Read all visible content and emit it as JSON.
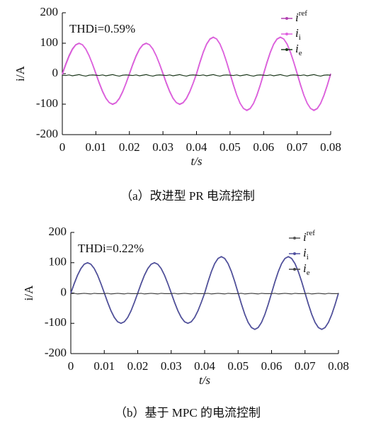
{
  "chart_data": [
    {
      "type": "line",
      "annotation": "THDi=0.59%",
      "x_label": "t/s",
      "y_label": "i/A",
      "caption": "（a）改进型 PR 电流控制",
      "xlim": [
        0,
        0.08
      ],
      "xticks": [
        0,
        0.01,
        0.02,
        0.03,
        0.04,
        0.05,
        0.06,
        0.07,
        0.08
      ],
      "ylim": [
        -200,
        200
      ],
      "yticks": [
        -200,
        -100,
        0,
        100,
        200
      ],
      "legend": "upper right",
      "x": [
        0,
        0.001,
        0.002,
        0.003,
        0.004,
        0.005,
        0.006,
        0.007,
        0.008,
        0.009,
        0.01,
        0.011,
        0.012,
        0.013,
        0.014,
        0.015,
        0.016,
        0.017,
        0.018,
        0.019,
        0.02,
        0.021,
        0.022,
        0.023,
        0.024,
        0.025,
        0.026,
        0.027,
        0.028,
        0.029,
        0.03,
        0.031,
        0.032,
        0.033,
        0.034,
        0.035,
        0.036,
        0.037,
        0.038,
        0.039,
        0.04,
        0.041,
        0.042,
        0.043,
        0.044,
        0.045,
        0.046,
        0.047,
        0.048,
        0.049,
        0.05,
        0.051,
        0.052,
        0.053,
        0.054,
        0.055,
        0.056,
        0.057,
        0.058,
        0.059,
        0.06,
        0.061,
        0.062,
        0.063,
        0.064,
        0.065,
        0.066,
        0.067,
        0.068,
        0.069,
        0.07,
        0.071,
        0.072,
        0.073,
        0.074,
        0.075,
        0.076,
        0.077,
        0.078,
        0.079,
        0.08
      ],
      "series": [
        {
          "name": "iref",
          "color": "#b040b0",
          "values": [
            0,
            30.9,
            58.8,
            80.9,
            95.1,
            100,
            95.1,
            80.9,
            58.8,
            30.9,
            0,
            -30.9,
            -58.8,
            -80.9,
            -95.1,
            -100,
            -95.1,
            -80.9,
            -58.8,
            -30.9,
            0,
            30.9,
            58.8,
            80.9,
            95.1,
            100,
            95.1,
            80.9,
            58.8,
            30.9,
            0,
            -30.9,
            -58.8,
            -80.9,
            -95.1,
            -100,
            -95.1,
            -80.9,
            -58.8,
            -30.9,
            0,
            37.1,
            70.5,
            97.1,
            114.1,
            120,
            114.1,
            97.1,
            70.5,
            37.1,
            0,
            -37.1,
            -70.5,
            -97.1,
            -114.1,
            -120,
            -114.1,
            -97.1,
            -70.5,
            -37.1,
            0,
            37.1,
            70.5,
            97.1,
            114.1,
            120,
            114.1,
            97.1,
            70.5,
            37.1,
            0,
            -37.1,
            -70.5,
            -97.1,
            -114.1,
            -120,
            -114.1,
            -97.1,
            -70.5,
            -37.1,
            0
          ]
        },
        {
          "name": "ii",
          "color": "#e060e0",
          "values": [
            -3,
            28,
            56,
            79,
            94,
            99,
            95,
            81,
            59,
            32,
            2,
            -29,
            -57,
            -80,
            -95,
            -101,
            -96,
            -82,
            -60,
            -32,
            -2,
            29,
            57,
            80,
            94,
            99,
            95,
            81,
            59,
            32,
            2,
            -29,
            -57,
            -80,
            -95,
            -101,
            -96,
            -82,
            -60,
            -32,
            -2,
            35,
            69,
            96,
            113,
            119,
            114,
            98,
            71,
            38,
            2,
            -35,
            -70,
            -97,
            -114,
            -121,
            -115,
            -98,
            -72,
            -39,
            -2,
            35,
            69,
            96,
            113,
            119,
            114,
            98,
            71,
            38,
            2,
            -35,
            -70,
            -97,
            -114,
            -121,
            -115,
            -98,
            -72,
            -39,
            -2
          ]
        },
        {
          "name": "ie",
          "color": "#1e3a1e",
          "values": [
            -5,
            -6,
            -4,
            -7,
            -5,
            -3,
            -6,
            -8,
            -5,
            -4,
            -5,
            -6,
            -4,
            -7,
            -5,
            -3,
            -6,
            -8,
            -5,
            -4,
            -5,
            -6,
            -4,
            -7,
            -5,
            -3,
            -6,
            -8,
            -5,
            -4,
            -5,
            -6,
            -4,
            -7,
            -5,
            -3,
            -6,
            -8,
            -5,
            -4,
            -5,
            -6,
            -4,
            -7,
            -5,
            -3,
            -6,
            -8,
            -5,
            -4,
            -5,
            -6,
            -4,
            -7,
            -5,
            -3,
            -6,
            -8,
            -5,
            -4,
            -5,
            -6,
            -4,
            -7,
            -5,
            -3,
            -6,
            -8,
            -5,
            -4,
            -5,
            -6,
            -4,
            -7,
            -5,
            -3,
            -6,
            -8,
            -5,
            -4,
            -5
          ]
        }
      ]
    },
    {
      "type": "line",
      "annotation": "THDi=0.22%",
      "x_label": "t/s",
      "y_label": "i/A",
      "caption": "（b）基于 MPC 的电流控制",
      "xlim": [
        0,
        0.08
      ],
      "xticks": [
        0,
        0.01,
        0.02,
        0.03,
        0.04,
        0.05,
        0.06,
        0.07,
        0.08
      ],
      "ylim": [
        -200,
        200
      ],
      "yticks": [
        -200,
        -100,
        0,
        100,
        200
      ],
      "legend": "upper right",
      "x": [
        0,
        0.001,
        0.002,
        0.003,
        0.004,
        0.005,
        0.006,
        0.007,
        0.008,
        0.009,
        0.01,
        0.011,
        0.012,
        0.013,
        0.014,
        0.015,
        0.016,
        0.017,
        0.018,
        0.019,
        0.02,
        0.021,
        0.022,
        0.023,
        0.024,
        0.025,
        0.026,
        0.027,
        0.028,
        0.029,
        0.03,
        0.031,
        0.032,
        0.033,
        0.034,
        0.035,
        0.036,
        0.037,
        0.038,
        0.039,
        0.04,
        0.041,
        0.042,
        0.043,
        0.044,
        0.045,
        0.046,
        0.047,
        0.048,
        0.049,
        0.05,
        0.051,
        0.052,
        0.053,
        0.054,
        0.055,
        0.056,
        0.057,
        0.058,
        0.059,
        0.06,
        0.061,
        0.062,
        0.063,
        0.064,
        0.065,
        0.066,
        0.067,
        0.068,
        0.069,
        0.07,
        0.071,
        0.072,
        0.073,
        0.074,
        0.075,
        0.076,
        0.077,
        0.078,
        0.079,
        0.08
      ],
      "series": [
        {
          "name": "iref",
          "color": "#555555",
          "values": [
            0,
            30.9,
            58.8,
            80.9,
            95.1,
            100,
            95.1,
            80.9,
            58.8,
            30.9,
            0,
            -30.9,
            -58.8,
            -80.9,
            -95.1,
            -100,
            -95.1,
            -80.9,
            -58.8,
            -30.9,
            0,
            30.9,
            58.8,
            80.9,
            95.1,
            100,
            95.1,
            80.9,
            58.8,
            30.9,
            0,
            -30.9,
            -58.8,
            -80.9,
            -95.1,
            -100,
            -95.1,
            -80.9,
            -58.8,
            -30.9,
            0,
            37.1,
            70.5,
            97.1,
            114.1,
            120,
            114.1,
            97.1,
            70.5,
            37.1,
            0,
            -37.1,
            -70.5,
            -97.1,
            -114.1,
            -120,
            -114.1,
            -97.1,
            -70.5,
            -37.1,
            0,
            37.1,
            70.5,
            97.1,
            114.1,
            120,
            114.1,
            97.1,
            70.5,
            37.1,
            0,
            -37.1,
            -70.5,
            -97.1,
            -114.1,
            -120,
            -114.1,
            -97.1,
            -70.5,
            -37.1,
            0
          ]
        },
        {
          "name": "ii",
          "color": "#5050a0",
          "values": [
            -1,
            30,
            58,
            80,
            95,
            100,
            95,
            81,
            59,
            31,
            1,
            -30,
            -58,
            -80,
            -95,
            -100,
            -95,
            -81,
            -59,
            -31,
            -1,
            30,
            58,
            80,
            95,
            100,
            95,
            81,
            59,
            31,
            1,
            -30,
            -58,
            -80,
            -95,
            -100,
            -95,
            -81,
            -59,
            -31,
            -1,
            36,
            70,
            97,
            114,
            120,
            114,
            97,
            71,
            38,
            1,
            -36,
            -70,
            -97,
            -114,
            -120,
            -114,
            -97,
            -71,
            -38,
            -1,
            36,
            70,
            97,
            114,
            120,
            114,
            97,
            71,
            38,
            1,
            -36,
            -70,
            -97,
            -114,
            -120,
            -114,
            -97,
            -71,
            -38,
            -1
          ]
        },
        {
          "name": "ie",
          "color": "#444444",
          "values": [
            -2,
            -1,
            -3,
            -2,
            -1,
            -2,
            -3,
            -1,
            -2,
            -2,
            -2,
            -1,
            -3,
            -2,
            -1,
            -2,
            -3,
            -1,
            -2,
            -2,
            -2,
            -1,
            -3,
            -2,
            -1,
            -2,
            -3,
            -1,
            -2,
            -2,
            -2,
            -1,
            -3,
            -2,
            -1,
            -2,
            -3,
            -1,
            -2,
            -2,
            -2,
            -1,
            -3,
            -2,
            -1,
            -2,
            -3,
            -1,
            -2,
            -2,
            -2,
            -1,
            -3,
            -2,
            -1,
            -2,
            -3,
            -1,
            -2,
            -2,
            -2,
            -1,
            -3,
            -2,
            -1,
            -2,
            -3,
            -1,
            -2,
            -2,
            -2,
            -1,
            -3,
            -2,
            -1,
            -2,
            -3,
            -1,
            -2,
            -2,
            -2
          ]
        }
      ]
    }
  ]
}
